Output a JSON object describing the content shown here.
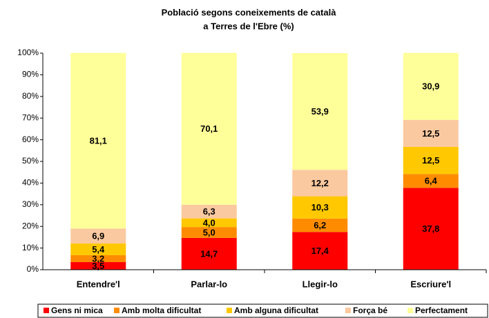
{
  "chart_data": {
    "type": "stacked_bar",
    "title": [
      "Població segons coneixements de català",
      "a Terres de l'Ebre (%)"
    ],
    "categories": [
      "Entendre'l",
      "Parlar-lo",
      "Llegir-lo",
      "Escriure'l"
    ],
    "series": [
      {
        "name": "Gens ni mica",
        "color": "#ff0000",
        "values": [
          3.5,
          14.7,
          17.4,
          37.8
        ],
        "value_labels": [
          "3,5",
          "14,7",
          "17,4",
          "37,8"
        ]
      },
      {
        "name": "Amb molta dificultat",
        "color": "#ff8c00",
        "values": [
          3.2,
          5.0,
          6.2,
          6.4
        ],
        "value_labels": [
          "3,2",
          "5,0",
          "6,2",
          "6,4"
        ]
      },
      {
        "name": "Amb alguna dificultat",
        "color": "#ffc800",
        "values": [
          5.4,
          4.0,
          10.3,
          12.5
        ],
        "value_labels": [
          "5,4",
          "4,0",
          "10,3",
          "12,5"
        ]
      },
      {
        "name": "Força bé",
        "color": "#fbc9a0",
        "values": [
          6.9,
          6.3,
          12.2,
          12.5
        ],
        "value_labels": [
          "6,9",
          "6,3",
          "12,2",
          "12,5"
        ]
      },
      {
        "name": "Perfectament",
        "color": "#ffff99",
        "values": [
          81.1,
          70.1,
          53.9,
          30.9
        ],
        "value_labels": [
          "81,1",
          "70,1",
          "53,9",
          "30,9"
        ]
      }
    ],
    "ylim": [
      0,
      100
    ],
    "yticks": [
      {
        "value": 0,
        "label": "0%"
      },
      {
        "value": 10,
        "label": "10%"
      },
      {
        "value": 20,
        "label": "20%"
      },
      {
        "value": 30,
        "label": "30%"
      },
      {
        "value": 40,
        "label": "40%"
      },
      {
        "value": 50,
        "label": "50%"
      },
      {
        "value": 60,
        "label": "60%"
      },
      {
        "value": 70,
        "label": "70%"
      },
      {
        "value": 80,
        "label": "80%"
      },
      {
        "value": 90,
        "label": "90%"
      },
      {
        "value": 100,
        "label": "100%"
      }
    ],
    "grid": false,
    "legend": "bottom"
  }
}
